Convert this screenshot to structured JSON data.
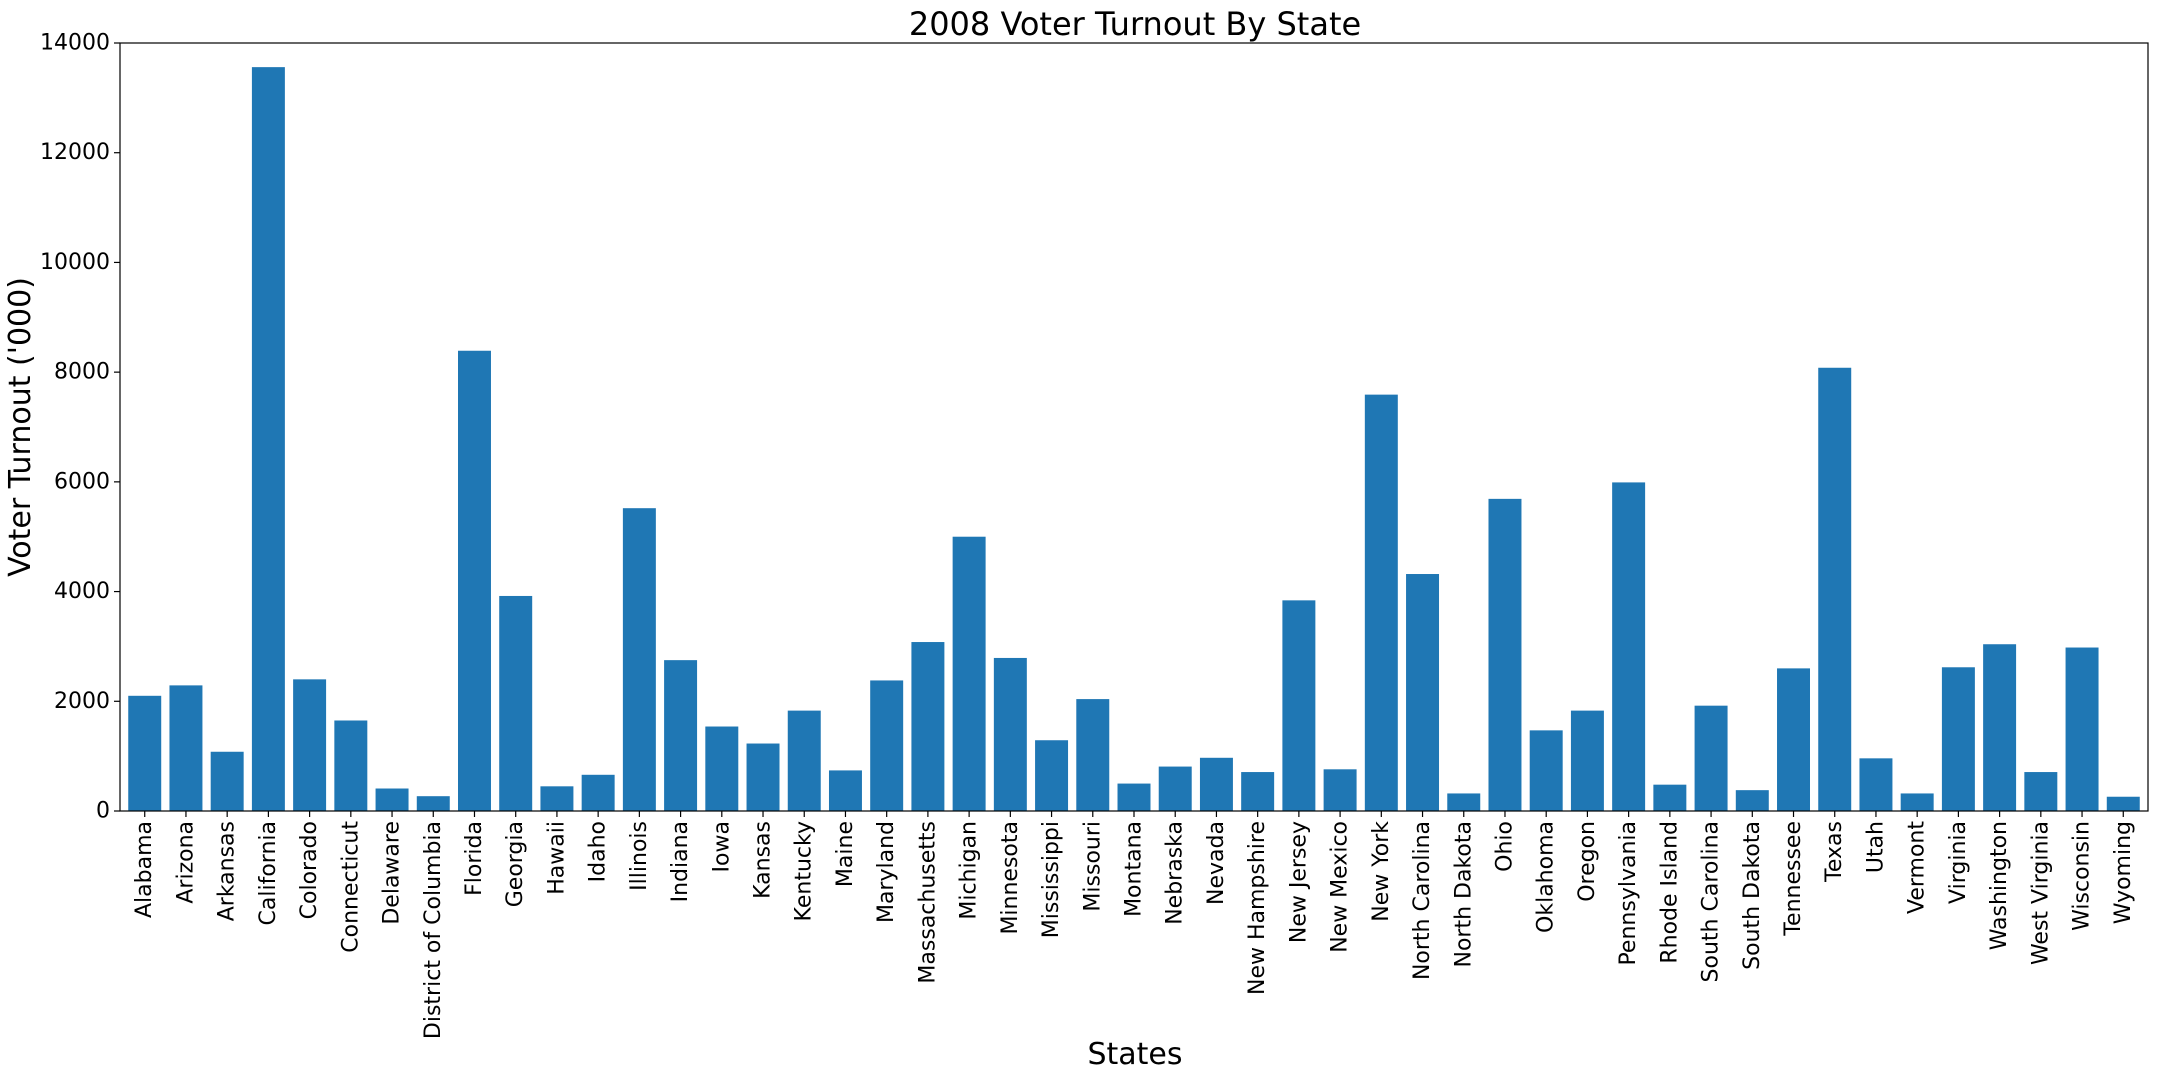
{
  "chart_data": {
    "type": "bar",
    "title": "2008 Voter Turnout By State",
    "xlabel": "States",
    "ylabel": "Voter Turnout ('000)",
    "ylim": [
      0,
      14000
    ],
    "yticks": [
      0,
      2000,
      4000,
      6000,
      8000,
      10000,
      12000,
      14000
    ],
    "grid": false,
    "bar_color": "#1f77b4",
    "categories": [
      "Alabama",
      "Arizona",
      "Arkansas",
      "California",
      "Colorado",
      "Connecticut",
      "Delaware",
      "District of Columbia",
      "Florida",
      "Georgia",
      "Hawaii",
      "Idaho",
      "Illinois",
      "Indiana",
      "Iowa",
      "Kansas",
      "Kentucky",
      "Maine",
      "Maryland",
      "Massachusetts",
      "Michigan",
      "Minnesota",
      "Mississippi",
      "Missouri",
      "Montana",
      "Nebraska",
      "Nevada",
      "New Hampshire",
      "New Jersey",
      "New Mexico",
      "New York",
      "North Carolina",
      "North Dakota",
      "Ohio",
      "Oklahoma",
      "Oregon",
      "Pennsylvania",
      "Rhode Island",
      "South Carolina",
      "South Dakota",
      "Tennessee",
      "Texas",
      "Utah",
      "Vermont",
      "Virginia",
      "Washington",
      "West Virginia",
      "Wisconsin",
      "Wyoming"
    ],
    "values": [
      2100,
      2290,
      1080,
      13560,
      2400,
      1650,
      410,
      270,
      8390,
      3920,
      450,
      660,
      5520,
      2750,
      1540,
      1230,
      1830,
      740,
      2380,
      3080,
      5000,
      2790,
      1290,
      2040,
      500,
      810,
      970,
      710,
      3840,
      760,
      7590,
      4320,
      320,
      5690,
      1470,
      1830,
      5990,
      480,
      1920,
      380,
      2600,
      8080,
      960,
      320,
      2620,
      3040,
      710,
      2980,
      260
    ]
  }
}
